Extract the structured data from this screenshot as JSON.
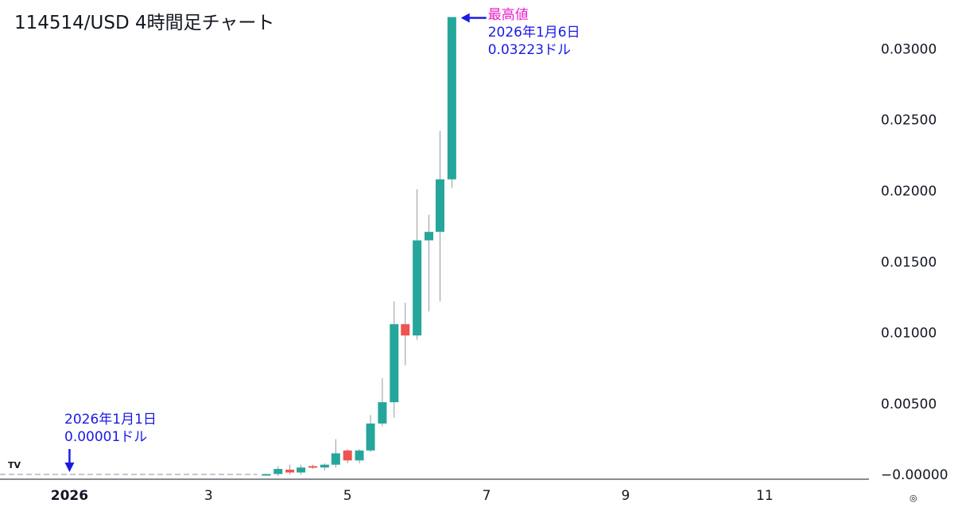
{
  "chart_data": {
    "type": "candlestick",
    "title": "114514/USD 4時間足チャート",
    "y_ticks": [
      "0.03000",
      "0.02500",
      "0.02000",
      "0.01500",
      "0.01000",
      "0.00500",
      "−0.00000"
    ],
    "y_tick_values": [
      0.03,
      0.025,
      0.02,
      0.015,
      0.01,
      0.005,
      0
    ],
    "ylim": [
      -0.0001,
      0.0322
    ],
    "x_ticks": [
      {
        "label": "2026",
        "day": 1,
        "bold": true
      },
      {
        "label": "3",
        "day": 3,
        "bold": false
      },
      {
        "label": "5",
        "day": 5,
        "bold": false
      },
      {
        "label": "7",
        "day": 7,
        "bold": false
      },
      {
        "label": "9",
        "day": 9,
        "bold": false
      },
      {
        "label": "11",
        "day": 11,
        "bold": false
      }
    ],
    "xlim": [
      0,
      12.5
    ],
    "up_color": "#26a69a",
    "down_color": "#ef5350",
    "wick_color": "#9598a1",
    "candles": [
      {
        "t": 3.83,
        "o": 1e-05,
        "h": 5e-05,
        "l": 0.0,
        "c": 4e-05
      },
      {
        "t": 4.0,
        "o": 4e-05,
        "h": 0.0006,
        "l": -0.0001,
        "c": 0.0004
      },
      {
        "t": 4.17,
        "o": 0.00035,
        "h": 0.0007,
        "l": 0.0,
        "c": 0.00015
      },
      {
        "t": 4.33,
        "o": 0.00015,
        "h": 0.0007,
        "l": 0.0,
        "c": 0.0005
      },
      {
        "t": 4.5,
        "o": 0.0006,
        "h": 0.0007,
        "l": 0.0004,
        "c": 0.0005
      },
      {
        "t": 4.67,
        "o": 0.0005,
        "h": 0.0008,
        "l": 0.0003,
        "c": 0.0007
      },
      {
        "t": 4.83,
        "o": 0.0007,
        "h": 0.0025,
        "l": 0.0005,
        "c": 0.0015
      },
      {
        "t": 5.0,
        "o": 0.0017,
        "h": 0.0018,
        "l": 0.0008,
        "c": 0.001
      },
      {
        "t": 5.17,
        "o": 0.001,
        "h": 0.0018,
        "l": 0.0008,
        "c": 0.0017
      },
      {
        "t": 5.33,
        "o": 0.0017,
        "h": 0.0042,
        "l": 0.0016,
        "c": 0.0036
      },
      {
        "t": 5.5,
        "o": 0.0036,
        "h": 0.0068,
        "l": 0.0034,
        "c": 0.0051
      },
      {
        "t": 5.67,
        "o": 0.0051,
        "h": 0.0122,
        "l": 0.004,
        "c": 0.0106
      },
      {
        "t": 5.83,
        "o": 0.0106,
        "h": 0.0121,
        "l": 0.0077,
        "c": 0.0098
      },
      {
        "t": 6.0,
        "o": 0.0098,
        "h": 0.0201,
        "l": 0.0095,
        "c": 0.0165
      },
      {
        "t": 6.17,
        "o": 0.0165,
        "h": 0.0183,
        "l": 0.0115,
        "c": 0.0171
      },
      {
        "t": 6.33,
        "o": 0.0171,
        "h": 0.0242,
        "l": 0.0122,
        "c": 0.0208
      },
      {
        "t": 6.5,
        "o": 0.0208,
        "h": 0.03223,
        "l": 0.0202,
        "c": 0.03223
      }
    ],
    "baseline_dashed": {
      "from_day": 0,
      "to_day": 3.7,
      "value": 1e-05
    },
    "annotations": [
      {
        "lines": [
          "最高値",
          "2026年1月6日",
          "0.03223ドル"
        ],
        "colors": [
          "magenta",
          "blue",
          "blue"
        ],
        "pointing_day": 6.55,
        "pointing_value": 0.03223
      },
      {
        "lines": [
          "2026年1月1日",
          "0.00001ドル"
        ],
        "colors": [
          "blue",
          "blue"
        ],
        "pointing_day": 1.0,
        "pointing_value": 1e-05
      }
    ]
  },
  "logo_text": "TV",
  "settings_glyph": "◎"
}
